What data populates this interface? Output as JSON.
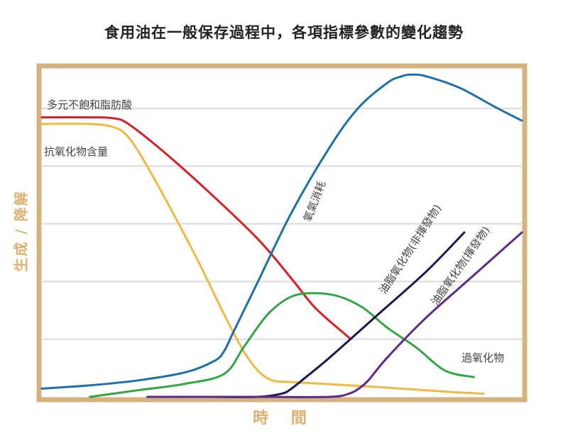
{
  "chart_data": {
    "type": "line",
    "title": "食用油在一般保存過程中，各項指標參數的變化趨勢",
    "xlabel": "時 間",
    "ylabel": "生成 / 降解",
    "xlim": [
      0,
      100
    ],
    "ylim": [
      0,
      100
    ],
    "grid": true,
    "tick_labels": false,
    "series": [
      {
        "name": "多元不飽和脂肪酸",
        "color": "#d42027",
        "x": [
          0,
          10,
          15,
          18,
          25,
          35,
          45,
          52,
          57,
          64
        ],
        "y": [
          85,
          85,
          84.7,
          83,
          75,
          62,
          48,
          36,
          27,
          18
        ]
      },
      {
        "name": "抗氧化物含量",
        "color": "#f1b940",
        "x": [
          0,
          10,
          15,
          18,
          22,
          28,
          33,
          38,
          42,
          45,
          48,
          52,
          58,
          70,
          85,
          92
        ],
        "y": [
          83,
          83,
          82,
          79,
          70,
          54,
          40,
          25,
          14,
          8,
          5,
          4.5,
          4,
          3,
          1.5,
          1
        ]
      },
      {
        "name": "氧氣消耗",
        "color": "#1f6fa9",
        "x": [
          0,
          10,
          20,
          30,
          36,
          38,
          40,
          45,
          52,
          60,
          66,
          72,
          75,
          77,
          80,
          87,
          94,
          100
        ],
        "y": [
          2.5,
          3.5,
          5,
          7.5,
          11,
          14,
          20,
          35,
          56,
          76,
          88,
          95.5,
          97.5,
          98,
          97.5,
          94,
          88.5,
          84
        ]
      },
      {
        "name": "過氧化物",
        "color": "#33a544",
        "x": [
          10,
          20,
          30,
          38,
          42,
          47,
          52,
          57,
          62,
          67,
          72,
          78,
          84,
          90
        ],
        "y": [
          0,
          2,
          4,
          7,
          15,
          25,
          30.5,
          31.5,
          30.5,
          27,
          21,
          15,
          8,
          6
        ]
      },
      {
        "name": "油脂氧化物(非揮發物)",
        "color": "#141a4d",
        "x": [
          22,
          35,
          45,
          50,
          52,
          55,
          60,
          70,
          80,
          88
        ],
        "y": [
          0,
          0,
          0,
          1,
          2.5,
          6,
          12,
          25,
          38,
          50
        ]
      },
      {
        "name": "油脂氧化物(揮發物)",
        "color": "#5c2a89",
        "x": [
          22,
          45,
          60,
          64,
          66,
          68,
          72,
          80,
          90,
          100
        ],
        "y": [
          0,
          0,
          0,
          1,
          2.5,
          5,
          12,
          24,
          37,
          50
        ]
      }
    ],
    "annotations": [
      {
        "text": "多元不飽和脂肪酸",
        "series": "多元不飽和脂肪酸"
      },
      {
        "text": "抗氧化物含量",
        "series": "抗氧化物含量"
      },
      {
        "text": "氧氣消耗",
        "series": "氧氣消耗"
      },
      {
        "text": "過氧化物",
        "series": "過氧化物"
      },
      {
        "text": "油脂氧化物(非揮發物)",
        "series": "油脂氧化物(非揮發物)"
      },
      {
        "text": "油脂氧化物(揮發物)",
        "series": "油脂氧化物(揮發物)"
      }
    ],
    "frame_color": "#d6b27f",
    "grid_color": "#dcdcdc"
  }
}
